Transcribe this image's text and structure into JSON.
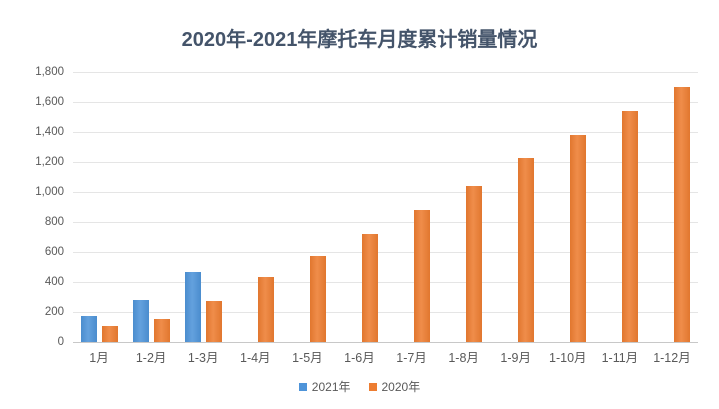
{
  "title": "2020年-2021年摩托车月度累计销量情况",
  "style": {
    "background": "#FFFFFF",
    "title_color": "#44546A",
    "axis_text_color": "#595959",
    "gridline_color": "#E5E5E5",
    "axis_line_color": "#C8C8C8",
    "series_2021_color": "#4E94D9",
    "series_2020_color": "#ED7D31"
  },
  "chart_data": {
    "type": "bar",
    "title": "2020年-2021年摩托车月度累计销量情况",
    "categories": [
      "1月",
      "1-2月",
      "1-3月",
      "1-4月",
      "1-5月",
      "1-6月",
      "1-7月",
      "1-8月",
      "1-9月",
      "1-10月",
      "1-11月",
      "1-12月"
    ],
    "series": [
      {
        "name": "2021年",
        "color": "#4E94D9",
        "values": [
          175,
          283,
          465,
          null,
          null,
          null,
          null,
          null,
          null,
          null,
          null,
          null
        ]
      },
      {
        "name": "2020年",
        "color": "#ED7D31",
        "values": [
          107,
          152,
          273,
          432,
          572,
          720,
          878,
          1040,
          1228,
          1380,
          1538,
          1700
        ]
      }
    ],
    "xlabel": "",
    "ylabel": "",
    "ylim": [
      0,
      1800
    ],
    "ytick_step": 200,
    "ytick_labels": [
      "0",
      "200",
      "400",
      "600",
      "800",
      "1,000",
      "1,200",
      "1,400",
      "1,600",
      "1,800"
    ],
    "grid": true,
    "legend_position": "bottom",
    "legend": [
      "2021年",
      "2020年"
    ]
  }
}
